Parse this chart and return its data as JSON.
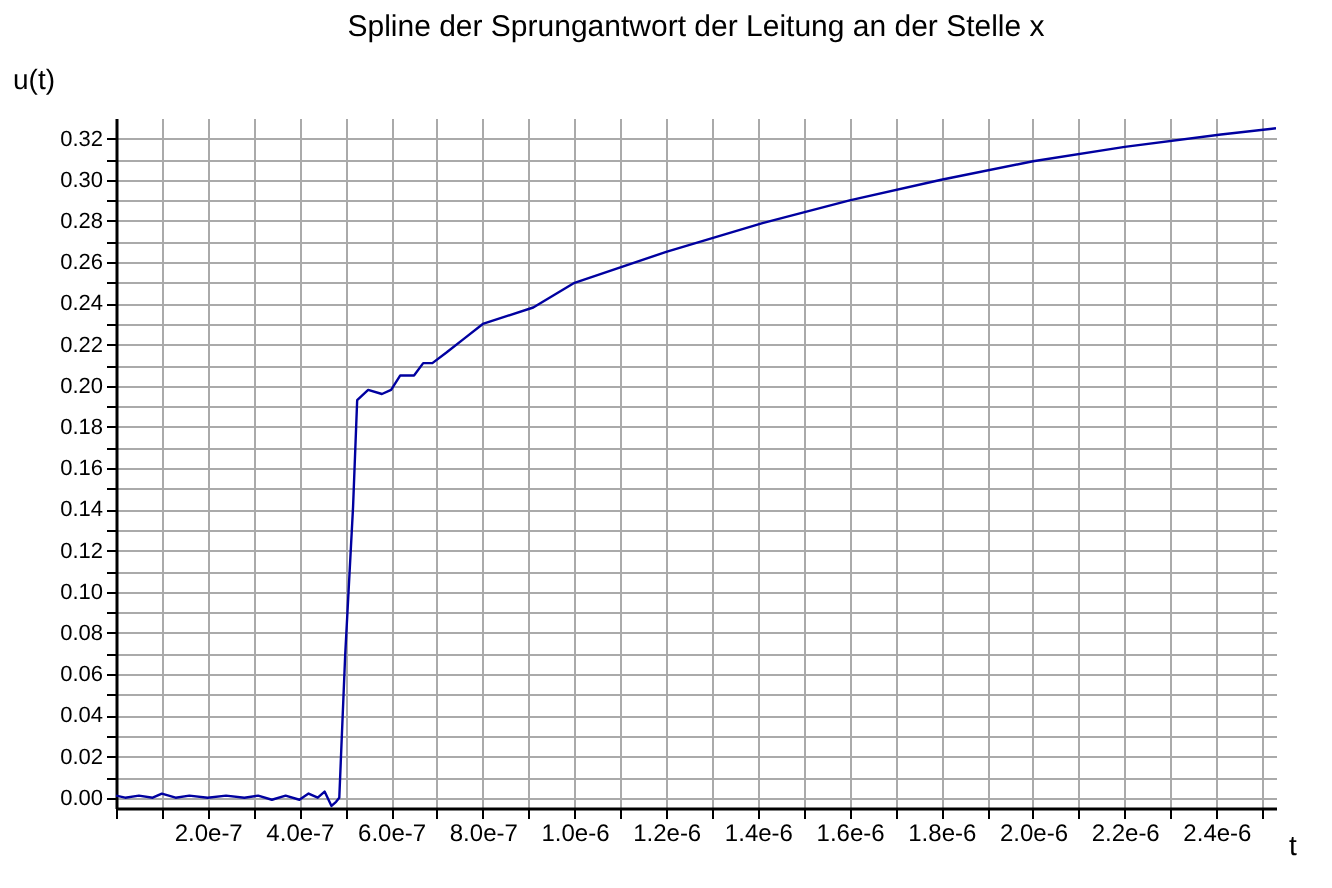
{
  "chart_data": {
    "type": "line",
    "title": "Spline der Sprungantwort der Leitung an der Stelle x",
    "xlabel": "t",
    "ylabel": "u(t)",
    "x": [
      0,
      2e-08,
      5e-08,
      8e-08,
      1e-07,
      1.3e-07,
      1.6e-07,
      2e-07,
      2.4e-07,
      2.8e-07,
      3.1e-07,
      3.4e-07,
      3.7e-07,
      4e-07,
      4.2e-07,
      4.4e-07,
      4.55e-07,
      4.7e-07,
      4.8e-07,
      4.87e-07,
      5e-07,
      5.17e-07,
      5.26e-07,
      5.5e-07,
      5.8e-07,
      6e-07,
      6.2e-07,
      6.5e-07,
      6.7e-07,
      6.9e-07,
      7.2e-07,
      7.6e-07,
      8e-07,
      9.1e-07,
      1e-06,
      1.2e-06,
      1.41e-06,
      1.6e-06,
      1.8e-06,
      2e-06,
      2.2e-06,
      2.41e-06,
      2.53e-06
    ],
    "series": [
      {
        "color": "#0000a0",
        "values": [
          0.001,
          0,
          0.001,
          0,
          0.002,
          0,
          0.001,
          0,
          0.001,
          0,
          0.001,
          -0.001,
          0.001,
          -0.001,
          0.002,
          0,
          0.003,
          -0.004,
          -0.002,
          0,
          0.07,
          0.141,
          0.193,
          0.198,
          0.196,
          0.198,
          0.205,
          0.205,
          0.211,
          0.211,
          0.216,
          0.223,
          0.23,
          0.238,
          0.25,
          0.265,
          0.279,
          0.29,
          0.3,
          0.309,
          0.316,
          0.322,
          0.325
        ]
      }
    ],
    "xlim": [
      0,
      2.53e-06
    ],
    "ylim": [
      -0.005,
      0.33
    ],
    "xticks": [
      {
        "value": 0,
        "label": null
      },
      {
        "value": 1e-07,
        "label": null
      },
      {
        "value": 2e-07,
        "label": "2.0e-7"
      },
      {
        "value": 3e-07,
        "label": null
      },
      {
        "value": 4e-07,
        "label": "4.0e-7"
      },
      {
        "value": 5e-07,
        "label": null
      },
      {
        "value": 6e-07,
        "label": "6.0e-7"
      },
      {
        "value": 7e-07,
        "label": null
      },
      {
        "value": 8e-07,
        "label": "8.0e-7"
      },
      {
        "value": 9e-07,
        "label": null
      },
      {
        "value": 1e-06,
        "label": "1.0e-6"
      },
      {
        "value": 1.1e-06,
        "label": null
      },
      {
        "value": 1.2e-06,
        "label": "1.2e-6"
      },
      {
        "value": 1.3e-06,
        "label": null
      },
      {
        "value": 1.4e-06,
        "label": "1.4e-6"
      },
      {
        "value": 1.5e-06,
        "label": null
      },
      {
        "value": 1.6e-06,
        "label": "1.6e-6"
      },
      {
        "value": 1.7e-06,
        "label": null
      },
      {
        "value": 1.8e-06,
        "label": "1.8e-6"
      },
      {
        "value": 1.9e-06,
        "label": null
      },
      {
        "value": 2e-06,
        "label": "2.0e-6"
      },
      {
        "value": 2.1e-06,
        "label": null
      },
      {
        "value": 2.2e-06,
        "label": "2.2e-6"
      },
      {
        "value": 2.3e-06,
        "label": null
      },
      {
        "value": 2.4e-06,
        "label": "2.4e-6"
      },
      {
        "value": 2.5e-06,
        "label": null
      }
    ],
    "yticks": [
      {
        "value": 0,
        "label": "0.00"
      },
      {
        "value": 0.01,
        "label": null
      },
      {
        "value": 0.02,
        "label": "0.02"
      },
      {
        "value": 0.03,
        "label": null
      },
      {
        "value": 0.04,
        "label": "0.04"
      },
      {
        "value": 0.05,
        "label": null
      },
      {
        "value": 0.06,
        "label": "0.06"
      },
      {
        "value": 0.07,
        "label": null
      },
      {
        "value": 0.08,
        "label": "0.08"
      },
      {
        "value": 0.09,
        "label": null
      },
      {
        "value": 0.1,
        "label": "0.10"
      },
      {
        "value": 0.11,
        "label": null
      },
      {
        "value": 0.12,
        "label": "0.12"
      },
      {
        "value": 0.13,
        "label": null
      },
      {
        "value": 0.14,
        "label": "0.14"
      },
      {
        "value": 0.15,
        "label": null
      },
      {
        "value": 0.16,
        "label": "0.16"
      },
      {
        "value": 0.17,
        "label": null
      },
      {
        "value": 0.18,
        "label": "0.18"
      },
      {
        "value": 0.19,
        "label": null
      },
      {
        "value": 0.2,
        "label": "0.20"
      },
      {
        "value": 0.21,
        "label": null
      },
      {
        "value": 0.22,
        "label": "0.22"
      },
      {
        "value": 0.23,
        "label": null
      },
      {
        "value": 0.24,
        "label": "0.24"
      },
      {
        "value": 0.25,
        "label": null
      },
      {
        "value": 0.26,
        "label": "0.26"
      },
      {
        "value": 0.27,
        "label": null
      },
      {
        "value": 0.28,
        "label": "0.28"
      },
      {
        "value": 0.29,
        "label": null
      },
      {
        "value": 0.3,
        "label": "0.30"
      },
      {
        "value": 0.31,
        "label": null
      },
      {
        "value": 0.32,
        "label": "0.32"
      }
    ],
    "grid": true,
    "marker": "none",
    "line_style": "solid"
  }
}
